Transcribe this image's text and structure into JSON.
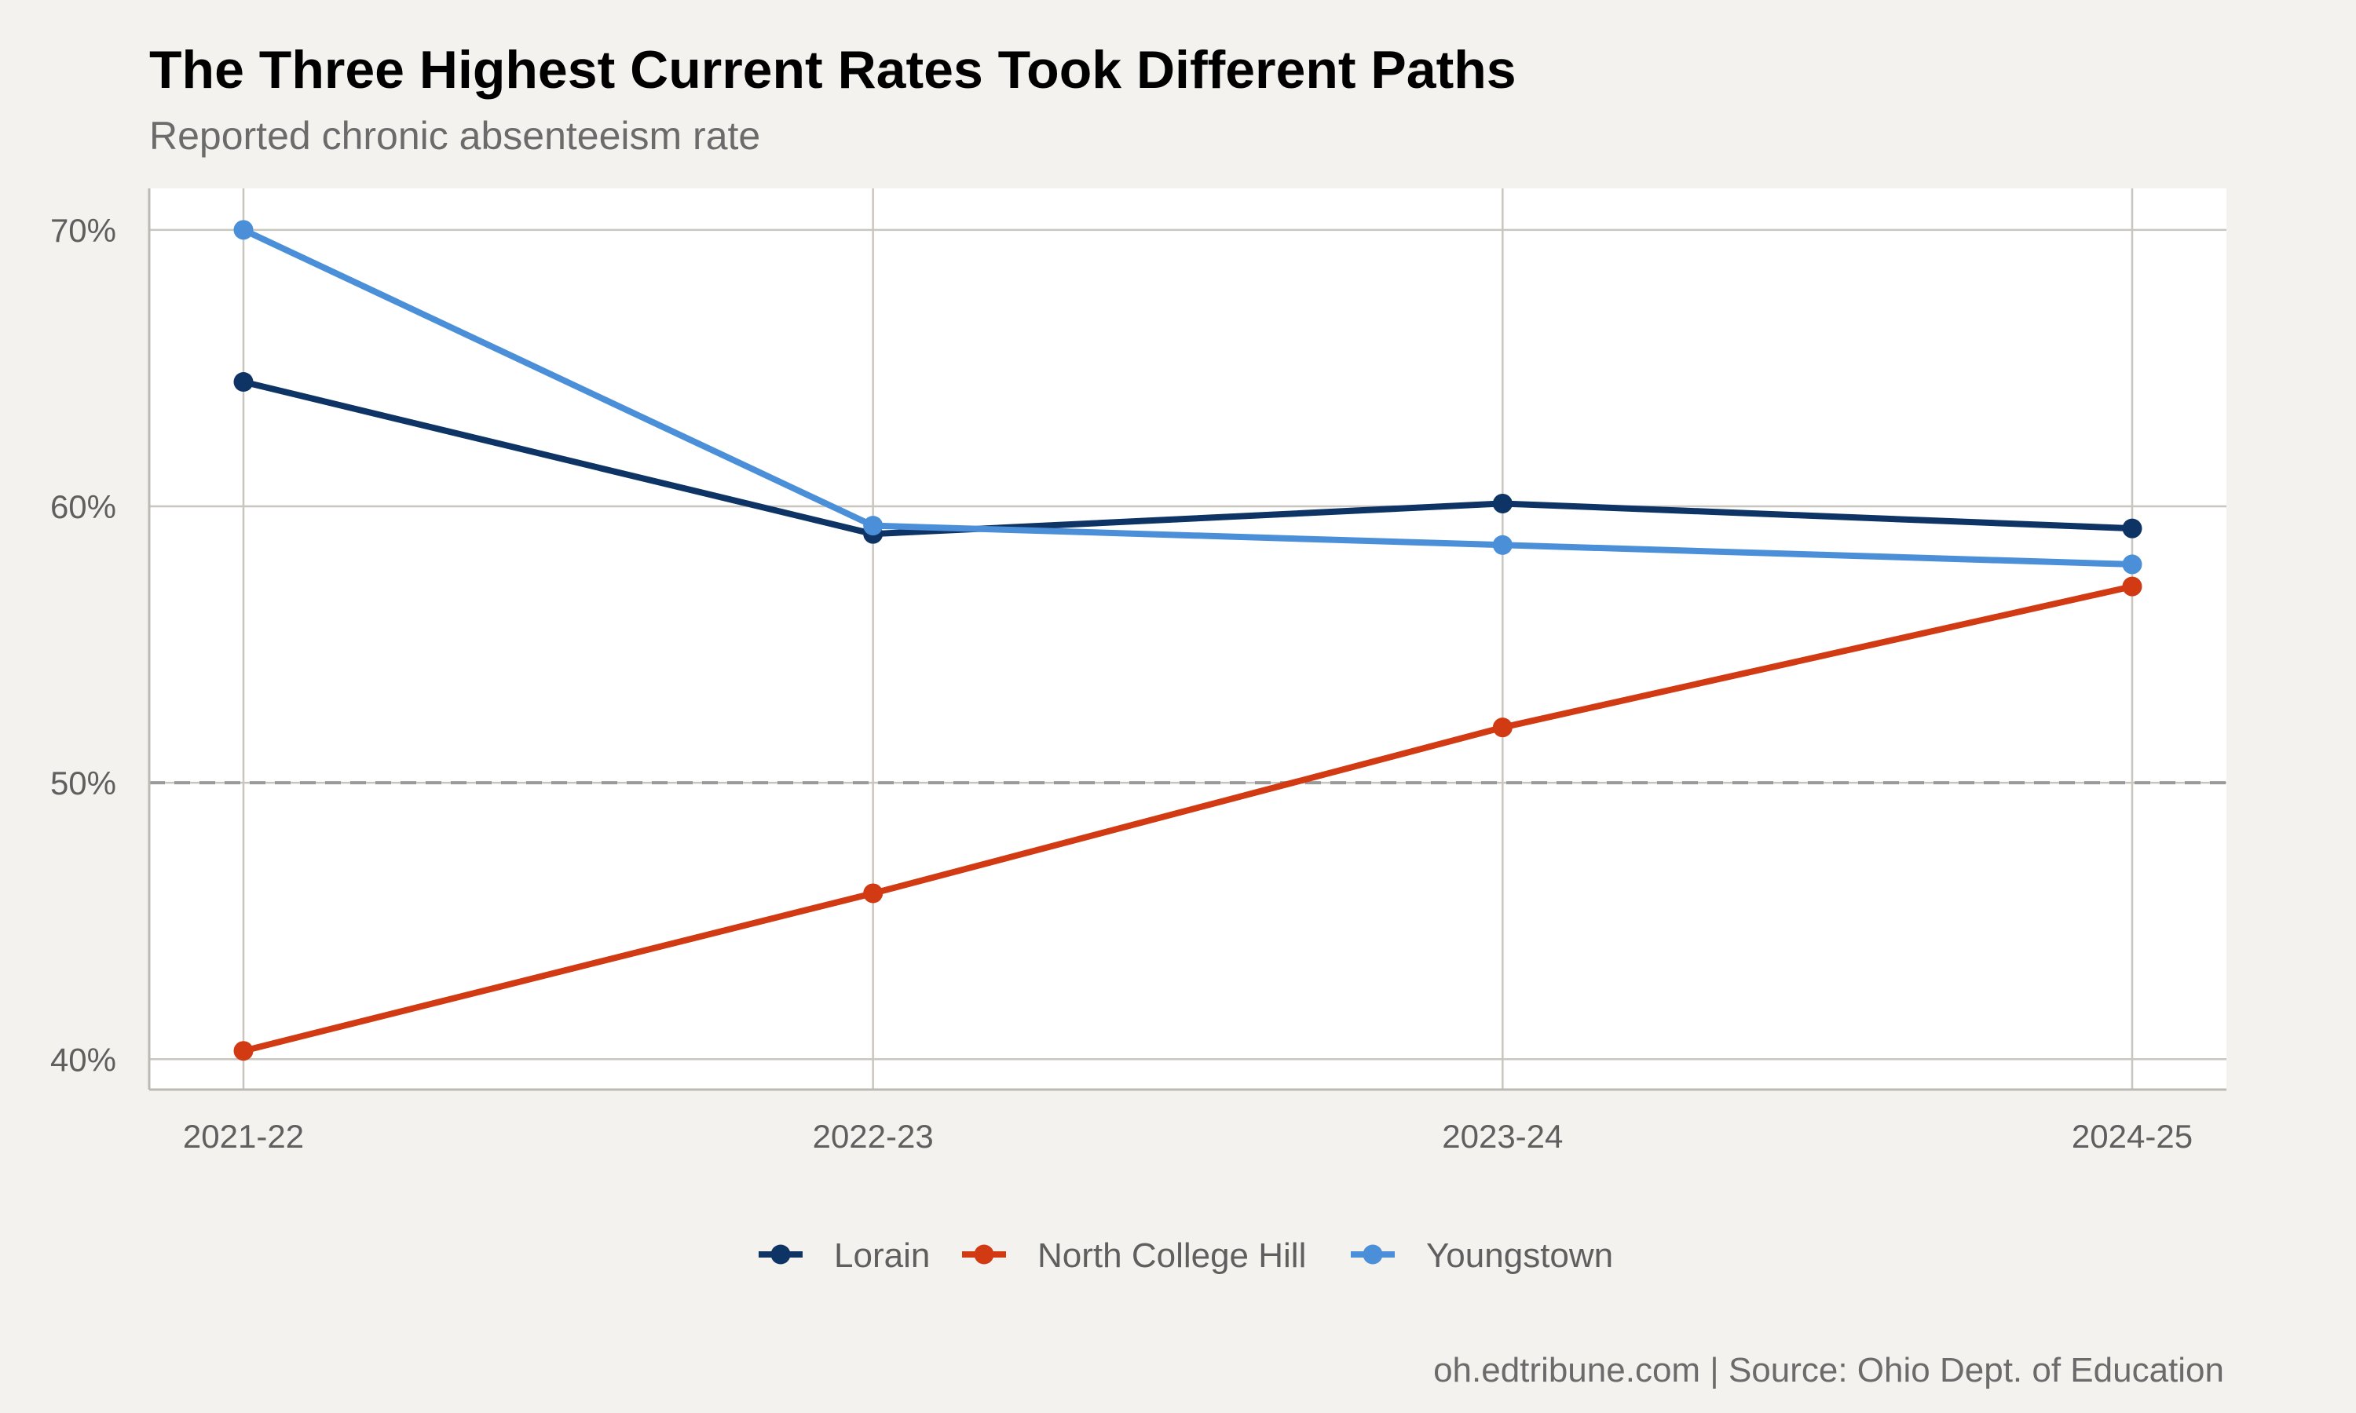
{
  "chart_data": {
    "type": "line",
    "title": "The Three Highest Current Rates Took Different Paths",
    "subtitle": "Reported chronic absenteeism rate",
    "caption": "oh.edtribune.com | Source: Ohio Dept. of Education",
    "categories": [
      "2021-22",
      "2022-23",
      "2023-24",
      "2024-25"
    ],
    "y_ticks": [
      {
        "value": 40,
        "label": "40%"
      },
      {
        "value": 50,
        "label": "50%"
      },
      {
        "value": 60,
        "label": "60%"
      },
      {
        "value": 70,
        "label": "70%"
      }
    ],
    "ylim": [
      38.9,
      71.5
    ],
    "reference_line": {
      "value": 50,
      "style": "dashed",
      "color": "#999999"
    },
    "grid": true,
    "legend_position": "bottom",
    "series": [
      {
        "name": "Lorain",
        "color": "#0d3464",
        "values": [
          64.5,
          59.0,
          60.1,
          59.2
        ]
      },
      {
        "name": "North College Hill",
        "color": "#d13a12",
        "values": [
          40.3,
          46.0,
          52.0,
          57.1
        ]
      },
      {
        "name": "Youngstown",
        "color": "#4a8fd8",
        "values": [
          70.0,
          59.3,
          58.6,
          57.9
        ]
      }
    ]
  }
}
